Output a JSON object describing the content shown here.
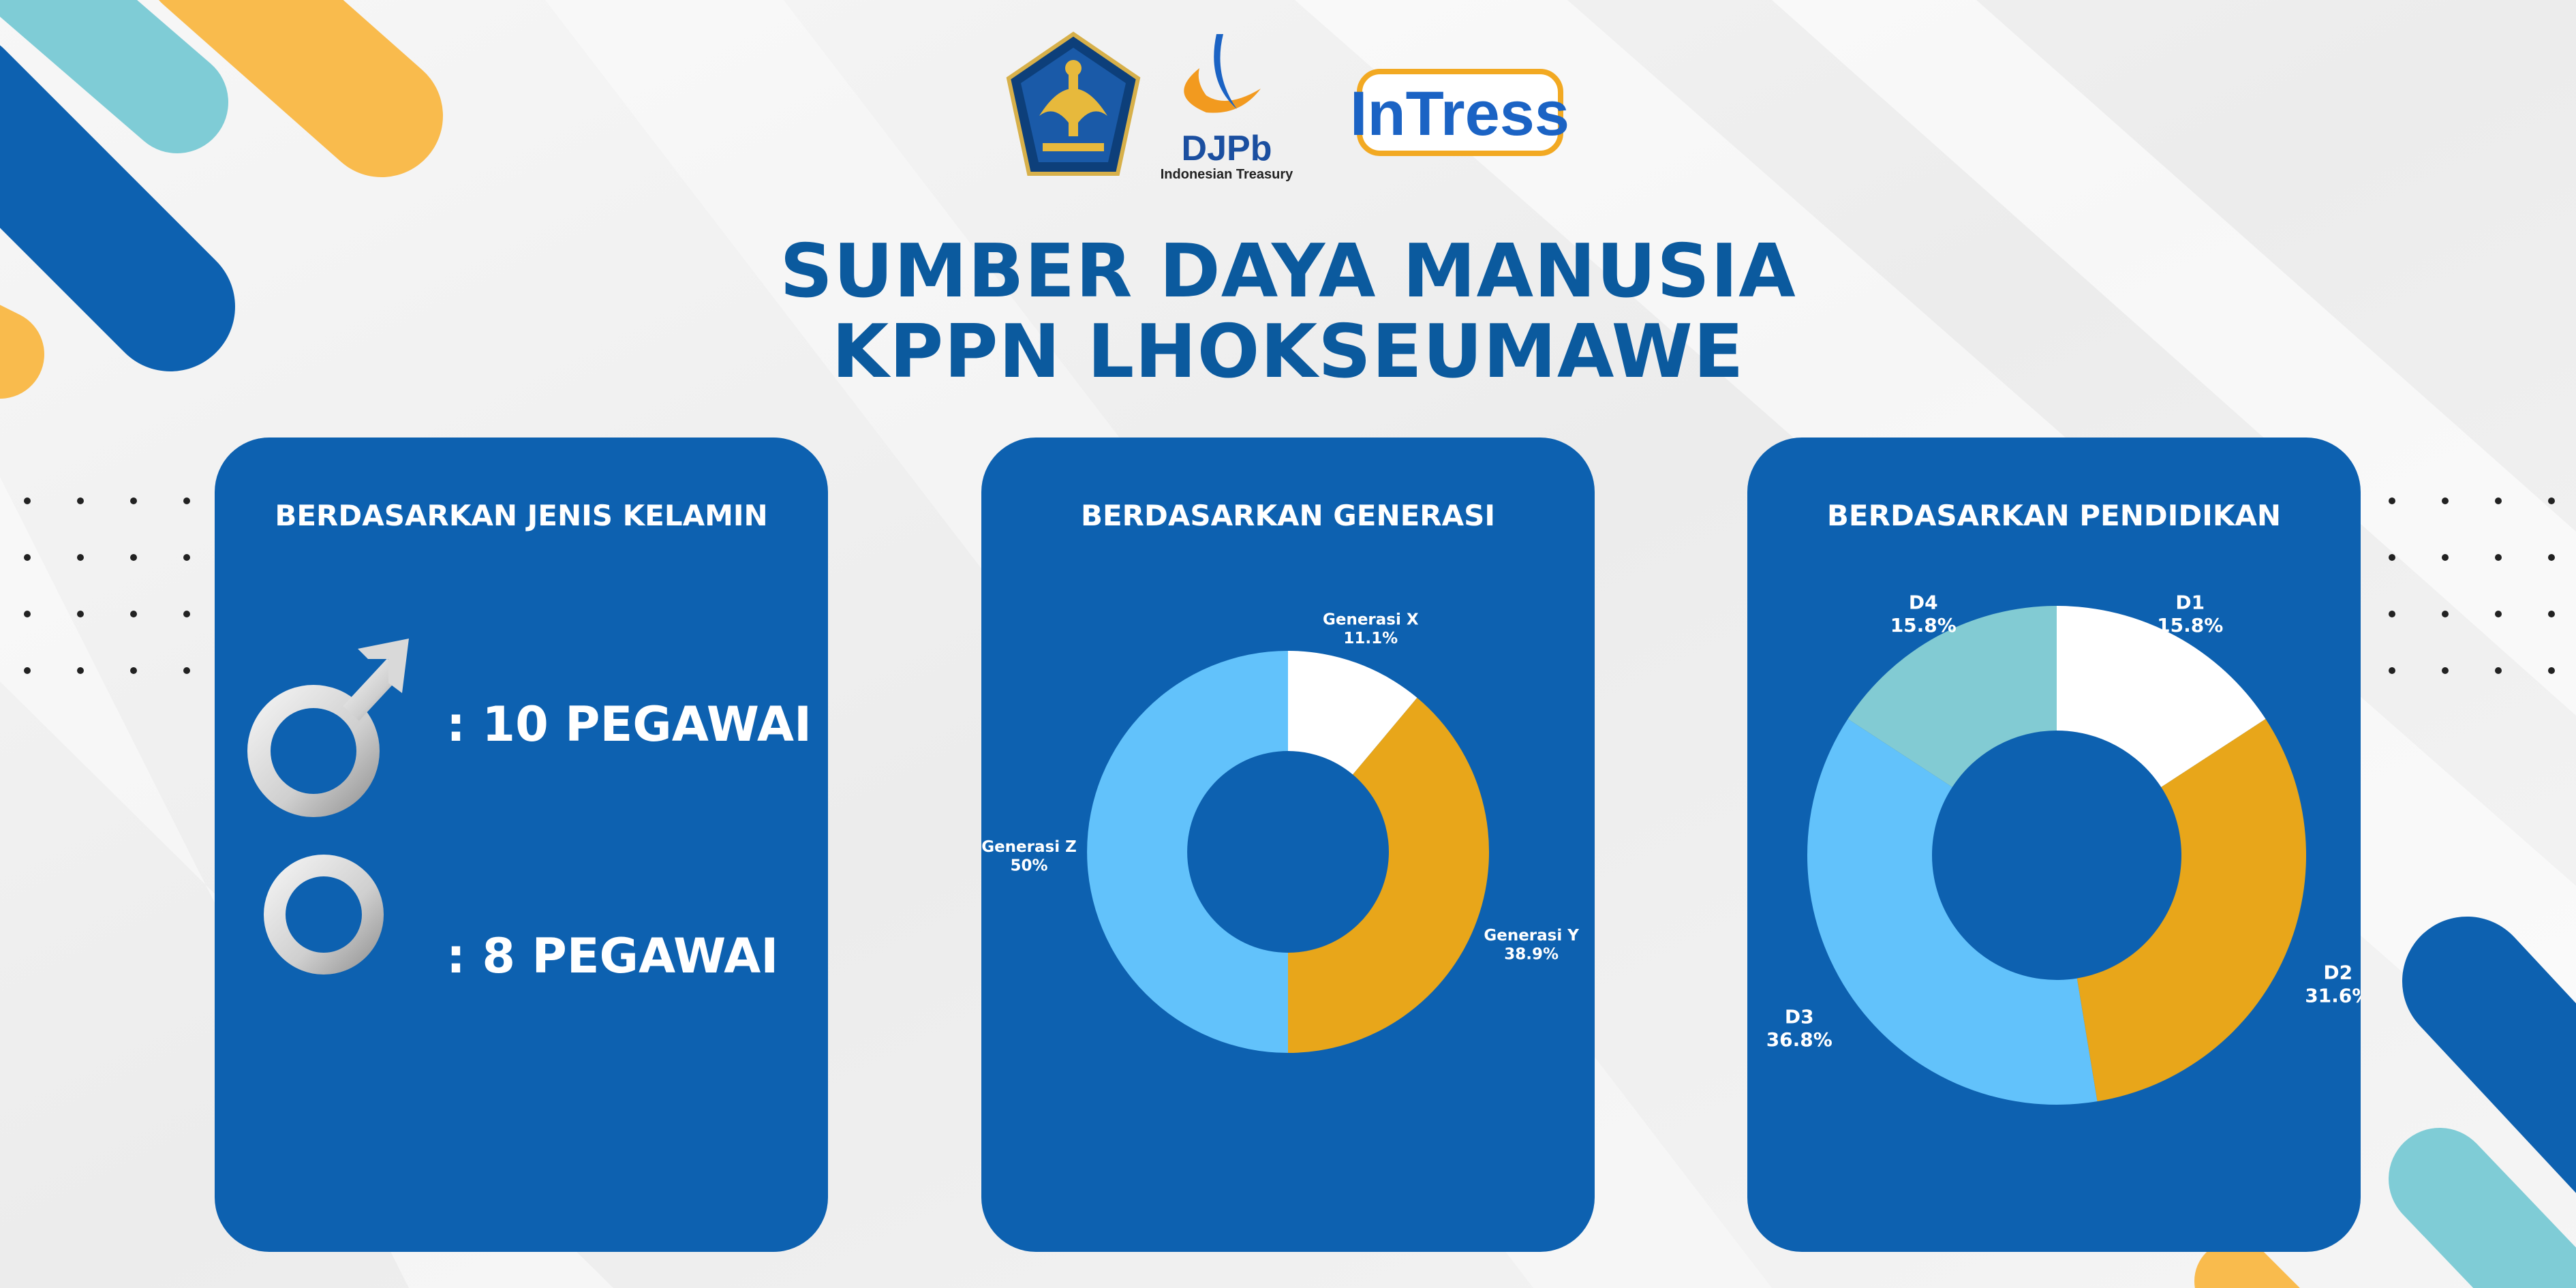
{
  "page": {
    "title_line1": "SUMBER DAYA MANUSIA",
    "title_line2": "KPPN LHOKSEUMAWE",
    "logos": {
      "djpb_text": "DJPb",
      "djpb_subtitle": "Indonesian Treasury",
      "intress_text": "InTress"
    }
  },
  "colors": {
    "card": "#0d61b0",
    "title": "#0b5a9e",
    "white": "#ffffff",
    "orange": "#e8a61a",
    "light_blue": "#62c2fb",
    "teal": "#82cbd3"
  },
  "gender": {
    "title": "BERDASARKAN JENIS KELAMIN",
    "male_text": ": 10 PEGAWAI",
    "female_text": ": 8 PEGAWAI",
    "male_icon": "male-symbol-icon",
    "female_icon": "female-symbol-icon"
  },
  "chart_data": [
    {
      "type": "pie",
      "title": "BERDASARKAN JENIS KELAMIN",
      "categories": [
        "Laki-laki",
        "Perempuan"
      ],
      "values": [
        10,
        8
      ]
    },
    {
      "type": "pie",
      "title": "BERDASARKAN GENERASI",
      "donut": true,
      "categories": [
        "Generasi X",
        "Generasi Y",
        "Generasi Z"
      ],
      "values": [
        11.1,
        38.9,
        50
      ],
      "labels": [
        "11.1%",
        "38.9%",
        "50%"
      ],
      "colors": [
        "#ffffff",
        "#e8a61a",
        "#62c2fb"
      ]
    },
    {
      "type": "pie",
      "title": "BERDASARKAN PENDIDIKAN",
      "donut": true,
      "categories": [
        "D1",
        "D2",
        "D3",
        "D4"
      ],
      "values": [
        15.8,
        31.6,
        36.8,
        15.8
      ],
      "labels": [
        "15.8%",
        "31.6%",
        "36.8%",
        "15.8%"
      ],
      "colors": [
        "#ffffff",
        "#e8a61a",
        "#62c2fb",
        "#82cbd3"
      ]
    }
  ]
}
